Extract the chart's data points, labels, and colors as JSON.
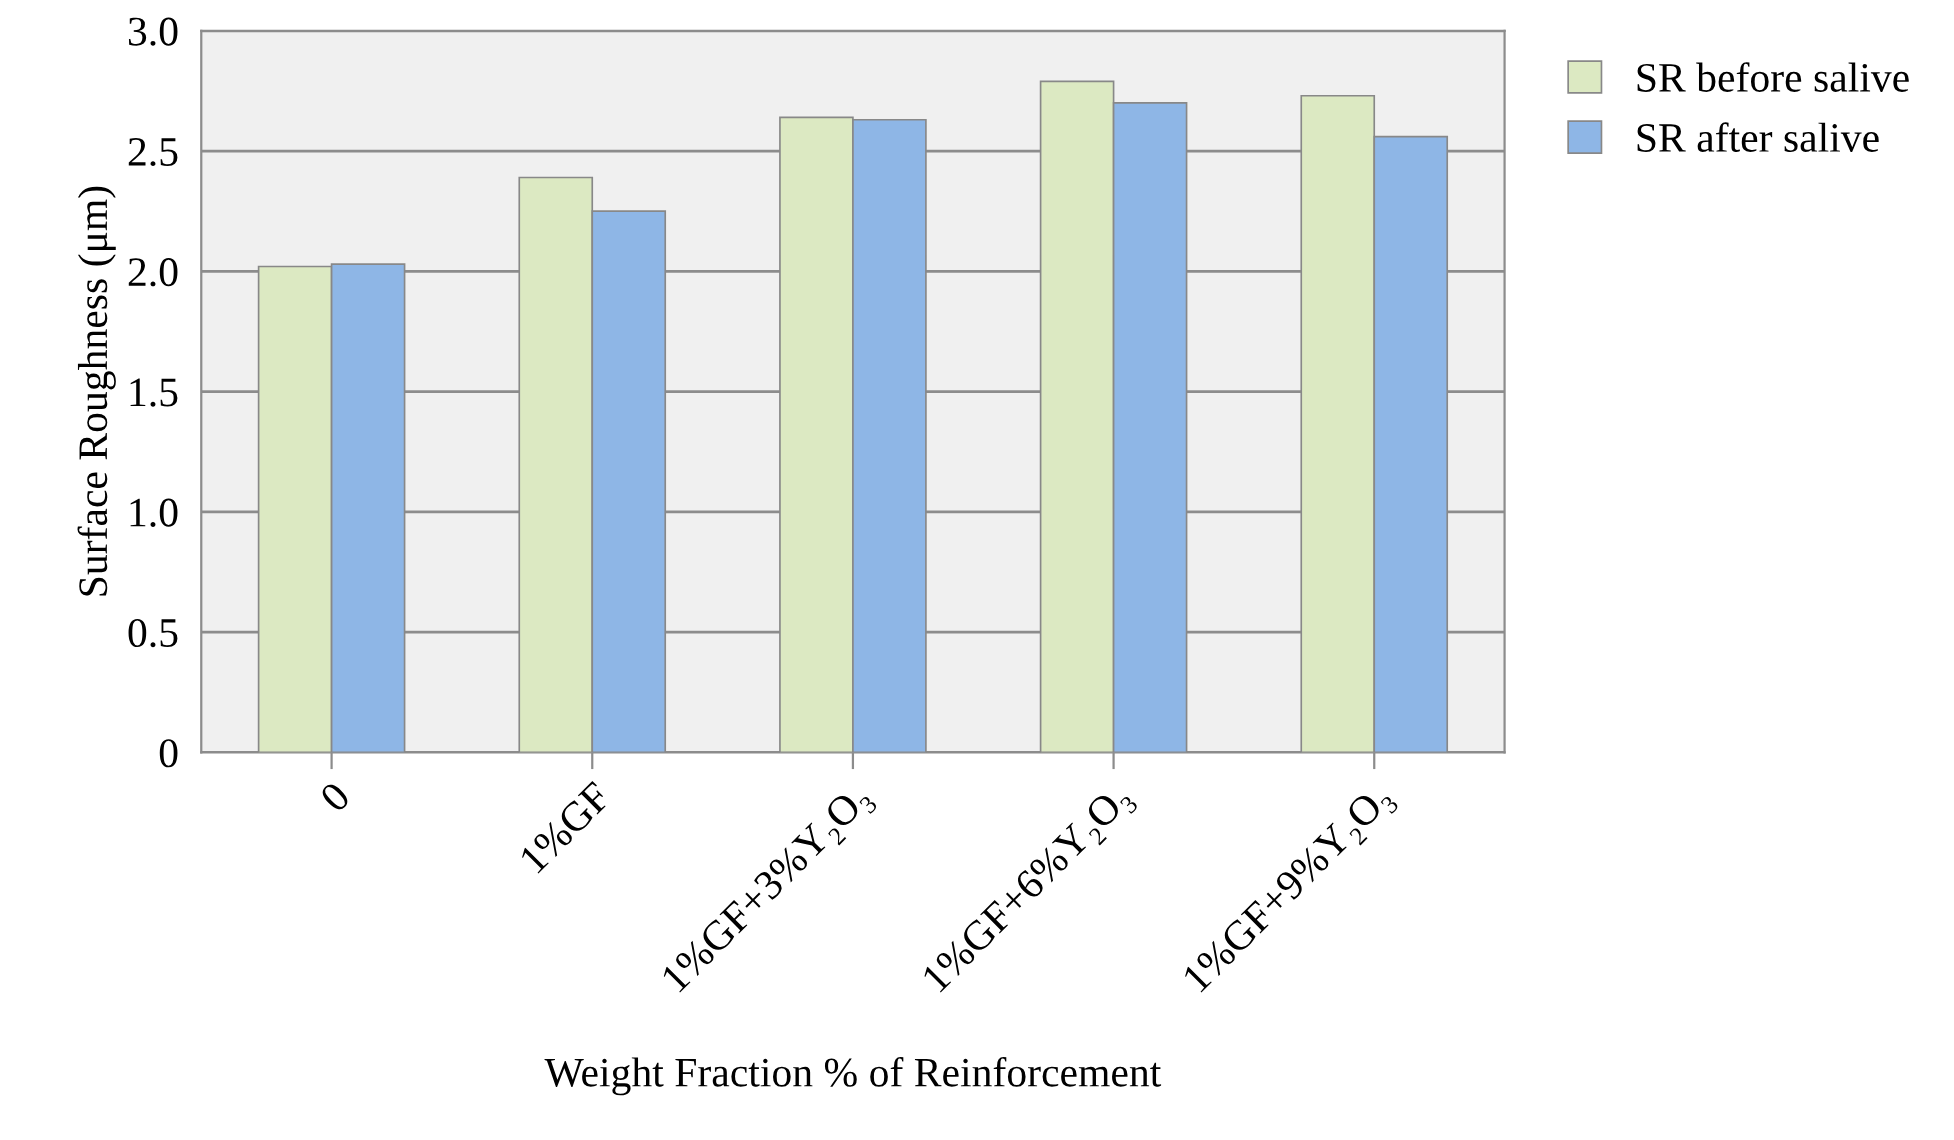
{
  "chart_data": {
    "type": "bar",
    "xlabel": "Weight Fraction % of Reinforcement",
    "ylabel": "Surface Roughness (μm)",
    "categories": [
      "0",
      "1%GF",
      "1%GF+3%Y₂O₃",
      "1%GF+6%Y₂O₃",
      "1%GF+9%Y₂O₃"
    ],
    "series": [
      {
        "name": "SR before salive",
        "color": "#dce9c2",
        "values": [
          2.02,
          2.39,
          2.64,
          2.79,
          2.73
        ]
      },
      {
        "name": "SR after salive",
        "color": "#8eb6e6",
        "values": [
          2.03,
          2.25,
          2.63,
          2.7,
          2.56
        ]
      }
    ],
    "ylim": [
      0,
      3.0
    ],
    "yticks": [
      {
        "value": 0,
        "label": "0"
      },
      {
        "value": 0.5,
        "label": "0.5"
      },
      {
        "value": 1.0,
        "label": "1.0"
      },
      {
        "value": 1.5,
        "label": "1.5"
      },
      {
        "value": 2.0,
        "label": "2.0"
      },
      {
        "value": 2.5,
        "label": "2.5"
      },
      {
        "value": 3.0,
        "label": "3.0"
      }
    ],
    "grid": "y",
    "legend": "top right"
  }
}
